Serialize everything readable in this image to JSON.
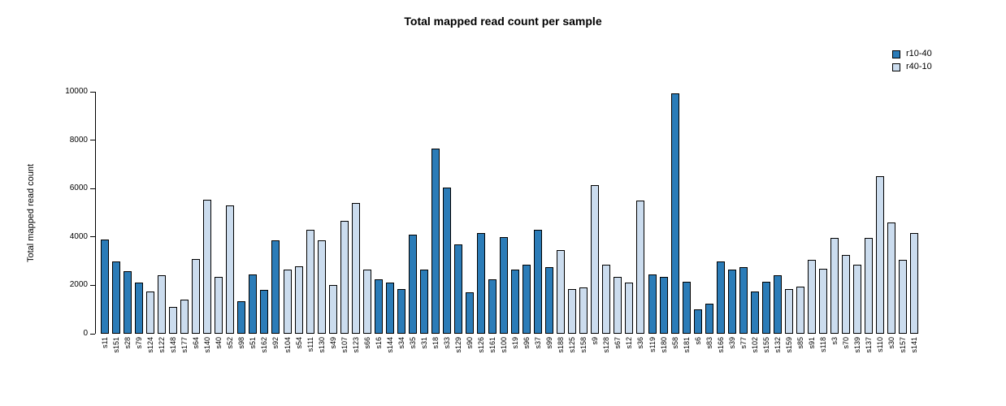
{
  "chart_data": {
    "type": "bar",
    "title": "Total mapped read count per sample",
    "xlabel": "",
    "ylabel": "Total mapped read count",
    "ylim": [
      0,
      10000
    ],
    "yticks": [
      0,
      2000,
      4000,
      6000,
      8000,
      10000
    ],
    "grid": false,
    "legend_position": "top-right",
    "legend": [
      {
        "label": "r10-40",
        "color": "#2b7cb8"
      },
      {
        "label": "r40-10",
        "color": "#cbdcee"
      }
    ],
    "bars": [
      {
        "label": "s11",
        "value": 3900,
        "group": 0
      },
      {
        "label": "s151",
        "value": 3000,
        "group": 0
      },
      {
        "label": "s28",
        "value": 2600,
        "group": 0
      },
      {
        "label": "s79",
        "value": 2100,
        "group": 0
      },
      {
        "label": "s124",
        "value": 1750,
        "group": 1
      },
      {
        "label": "s122",
        "value": 2400,
        "group": 1
      },
      {
        "label": "s148",
        "value": 1100,
        "group": 1
      },
      {
        "label": "s177",
        "value": 1400,
        "group": 1
      },
      {
        "label": "s64",
        "value": 3100,
        "group": 1
      },
      {
        "label": "s140",
        "value": 5550,
        "group": 1
      },
      {
        "label": "s40",
        "value": 2350,
        "group": 1
      },
      {
        "label": "s52",
        "value": 5300,
        "group": 1
      },
      {
        "label": "s98",
        "value": 1350,
        "group": 0
      },
      {
        "label": "s51",
        "value": 2450,
        "group": 0
      },
      {
        "label": "s162",
        "value": 1800,
        "group": 0
      },
      {
        "label": "s92",
        "value": 3850,
        "group": 0
      },
      {
        "label": "s104",
        "value": 2650,
        "group": 1
      },
      {
        "label": "s54",
        "value": 2800,
        "group": 1
      },
      {
        "label": "s111",
        "value": 4300,
        "group": 1
      },
      {
        "label": "s130",
        "value": 3850,
        "group": 1
      },
      {
        "label": "s49",
        "value": 2000,
        "group": 1
      },
      {
        "label": "s107",
        "value": 4650,
        "group": 1
      },
      {
        "label": "s123",
        "value": 5400,
        "group": 1
      },
      {
        "label": "s66",
        "value": 2650,
        "group": 1
      },
      {
        "label": "s16",
        "value": 2250,
        "group": 0
      },
      {
        "label": "s144",
        "value": 2100,
        "group": 0
      },
      {
        "label": "s34",
        "value": 1850,
        "group": 0
      },
      {
        "label": "s35",
        "value": 4100,
        "group": 0
      },
      {
        "label": "s31",
        "value": 2650,
        "group": 0
      },
      {
        "label": "s18",
        "value": 7650,
        "group": 0
      },
      {
        "label": "s33",
        "value": 6050,
        "group": 0
      },
      {
        "label": "s129",
        "value": 3700,
        "group": 0
      },
      {
        "label": "s90",
        "value": 1700,
        "group": 0
      },
      {
        "label": "s126",
        "value": 4150,
        "group": 0
      },
      {
        "label": "s161",
        "value": 2250,
        "group": 0
      },
      {
        "label": "s100",
        "value": 4000,
        "group": 0
      },
      {
        "label": "s19",
        "value": 2650,
        "group": 0
      },
      {
        "label": "s96",
        "value": 2850,
        "group": 0
      },
      {
        "label": "s37",
        "value": 4300,
        "group": 0
      },
      {
        "label": "s99",
        "value": 2750,
        "group": 0
      },
      {
        "label": "s188",
        "value": 3450,
        "group": 1
      },
      {
        "label": "s125",
        "value": 1850,
        "group": 1
      },
      {
        "label": "s158",
        "value": 1900,
        "group": 1
      },
      {
        "label": "s9",
        "value": 6150,
        "group": 1
      },
      {
        "label": "s128",
        "value": 2850,
        "group": 1
      },
      {
        "label": "s67",
        "value": 2350,
        "group": 1
      },
      {
        "label": "s12",
        "value": 2100,
        "group": 1
      },
      {
        "label": "s36",
        "value": 5500,
        "group": 1
      },
      {
        "label": "s119",
        "value": 2450,
        "group": 0
      },
      {
        "label": "s180",
        "value": 2350,
        "group": 0
      },
      {
        "label": "s58",
        "value": 9950,
        "group": 0
      },
      {
        "label": "s181",
        "value": 2150,
        "group": 0
      },
      {
        "label": "s6",
        "value": 1000,
        "group": 0
      },
      {
        "label": "s83",
        "value": 1250,
        "group": 0
      },
      {
        "label": "s166",
        "value": 3000,
        "group": 0
      },
      {
        "label": "s39",
        "value": 2650,
        "group": 0
      },
      {
        "label": "s77",
        "value": 2750,
        "group": 0
      },
      {
        "label": "s102",
        "value": 1750,
        "group": 0
      },
      {
        "label": "s155",
        "value": 2150,
        "group": 0
      },
      {
        "label": "s132",
        "value": 2400,
        "group": 0
      },
      {
        "label": "s159",
        "value": 1850,
        "group": 1
      },
      {
        "label": "s85",
        "value": 1950,
        "group": 1
      },
      {
        "label": "s91",
        "value": 3050,
        "group": 1
      },
      {
        "label": "s118",
        "value": 2700,
        "group": 1
      },
      {
        "label": "s3",
        "value": 3950,
        "group": 1
      },
      {
        "label": "s70",
        "value": 3250,
        "group": 1
      },
      {
        "label": "s139",
        "value": 2850,
        "group": 1
      },
      {
        "label": "s137",
        "value": 3950,
        "group": 1
      },
      {
        "label": "s110",
        "value": 6500,
        "group": 1
      },
      {
        "label": "s30",
        "value": 4600,
        "group": 1
      },
      {
        "label": "s157",
        "value": 3050,
        "group": 1
      },
      {
        "label": "s141",
        "value": 4150,
        "group": 1
      }
    ]
  }
}
